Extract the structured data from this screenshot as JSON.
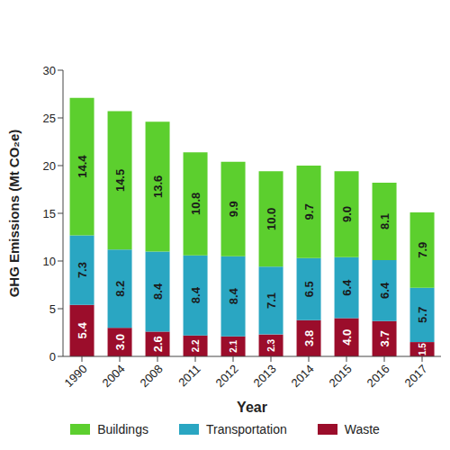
{
  "chart_data": {
    "type": "bar",
    "stacked": true,
    "data_labels": true,
    "grid": false,
    "legend": "bottom",
    "x_label": "Year",
    "y_label": "GHG Emissions (Mt CO₂e)",
    "categories": [
      "1990",
      "2004",
      "2008",
      "2011",
      "2012",
      "2013",
      "2014",
      "2015",
      "2016",
      "2017"
    ],
    "ylim": [
      0,
      30
    ],
    "yticks": [
      0,
      5,
      10,
      15,
      20,
      25,
      30
    ],
    "series": [
      {
        "name": "Buildings",
        "color": "#5ccf2e",
        "values": [
          14.4,
          14.5,
          13.6,
          10.8,
          9.9,
          10.0,
          9.7,
          9.0,
          8.1,
          7.9
        ],
        "value_labels": [
          "14.4",
          "14.5",
          "13.6",
          "10.8",
          "9.9",
          "10.0",
          "9.7",
          "9.0",
          "8.1",
          "7.9"
        ]
      },
      {
        "name": "Transportation",
        "color": "#2aa6c2",
        "values": [
          7.3,
          8.2,
          8.4,
          8.4,
          8.4,
          7.1,
          6.5,
          6.4,
          6.4,
          5.7
        ],
        "value_labels": [
          "7.3",
          "8.2",
          "8.4",
          "8.4",
          "8.4",
          "7.1",
          "6.5",
          "6.4",
          "6.4",
          "5.7"
        ]
      },
      {
        "name": "Waste",
        "color": "#9b0d2b",
        "values": [
          5.4,
          3.0,
          2.6,
          2.2,
          2.1,
          2.3,
          3.8,
          4.0,
          3.7,
          1.5
        ],
        "value_labels": [
          "5.4",
          "3.0",
          "2.6",
          "2.2",
          "2.1",
          "2.3",
          "3.8",
          "4.0",
          "3.7",
          "1.5"
        ]
      }
    ]
  }
}
